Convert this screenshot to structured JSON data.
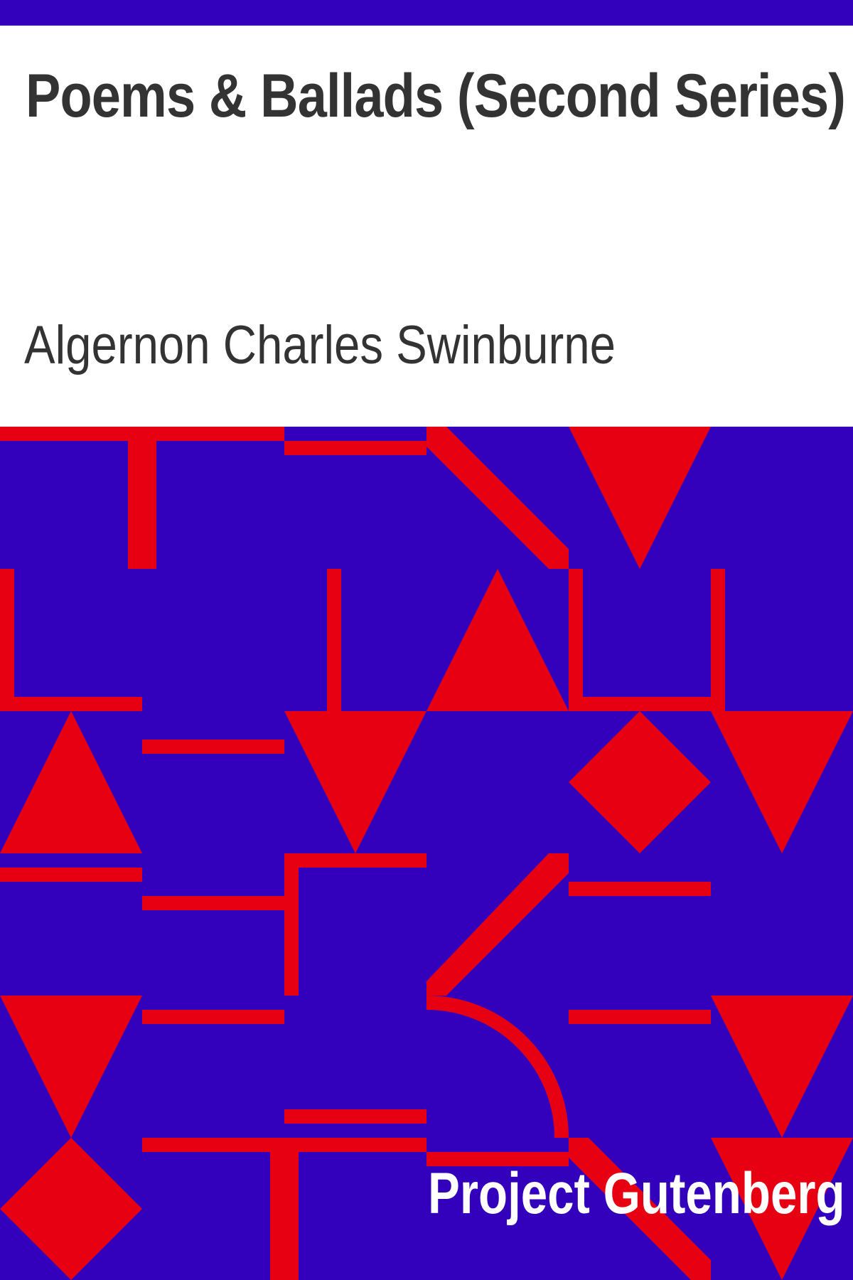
{
  "book": {
    "title": "Poems & Ballads (Second Series)",
    "author": "Algernon Charles Swinburne",
    "publisher": "Project Gutenberg"
  },
  "colors": {
    "background": "#ffffff",
    "pattern_background": "#3300bb",
    "pattern_shapes": "#e60012",
    "title_text": "#333333",
    "publisher_text": "#ffffff"
  }
}
